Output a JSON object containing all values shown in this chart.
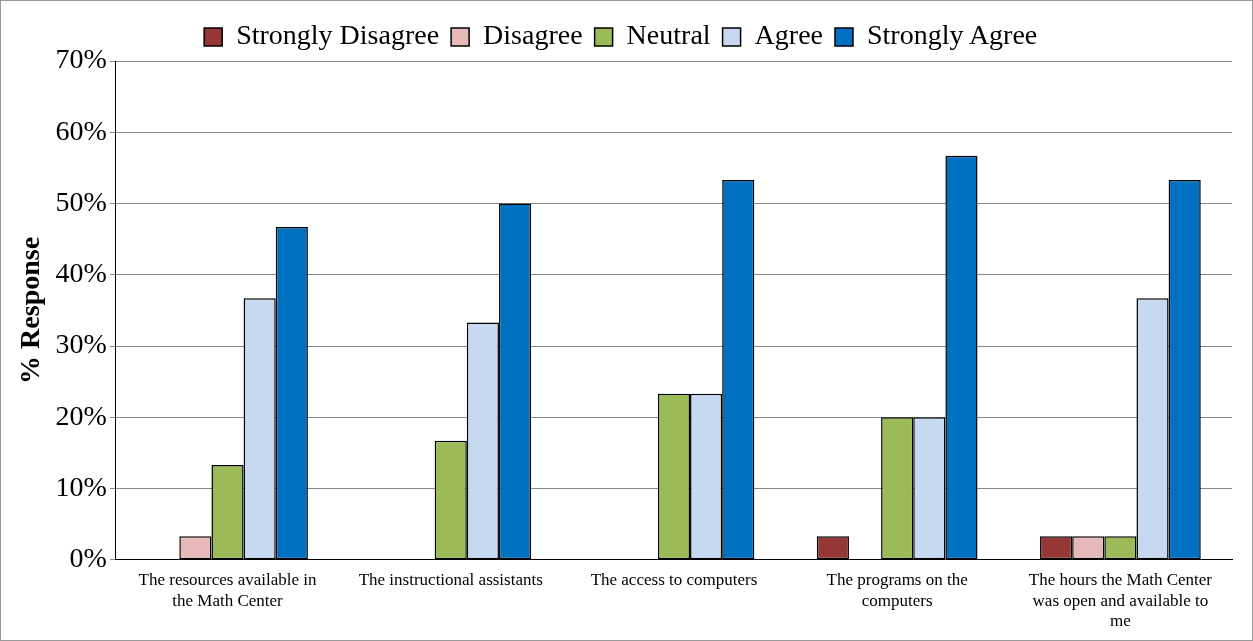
{
  "chart_data": {
    "type": "bar",
    "ylabel": "% Response",
    "categories": [
      "The resources available in the Math Center",
      "The instructional assistants",
      "The access to computers",
      "The programs on the computers",
      "The hours the Math Center was open and available to me"
    ],
    "series": [
      {
        "name": "Strongly Disagree",
        "color": "#953735",
        "values": [
          0,
          0,
          0,
          3.3,
          3.3
        ]
      },
      {
        "name": "Disagree",
        "color": "#e6b9b8",
        "values": [
          3.3,
          0,
          0,
          0,
          3.3
        ]
      },
      {
        "name": "Neutral",
        "color": "#9bbb59",
        "values": [
          13.3,
          16.7,
          23.3,
          20,
          3.3
        ]
      },
      {
        "name": "Agree",
        "color": "#c6d9f1",
        "values": [
          36.7,
          33.3,
          23.3,
          20,
          36.7
        ]
      },
      {
        "name": "Strongly Agree",
        "color": "#0070c0",
        "values": [
          46.7,
          50,
          53.3,
          56.7,
          53.3
        ]
      }
    ],
    "ylim": [
      0,
      70
    ],
    "yticks": [
      {
        "value": 0,
        "label": "0%"
      },
      {
        "value": 10,
        "label": "10%"
      },
      {
        "value": 20,
        "label": "20%"
      },
      {
        "value": 30,
        "label": "30%"
      },
      {
        "value": 40,
        "label": "40%"
      },
      {
        "value": 50,
        "label": "50%"
      },
      {
        "value": 60,
        "label": "60%"
      },
      {
        "value": 70,
        "label": "70%"
      }
    ],
    "grid": "y",
    "legend": "top"
  }
}
